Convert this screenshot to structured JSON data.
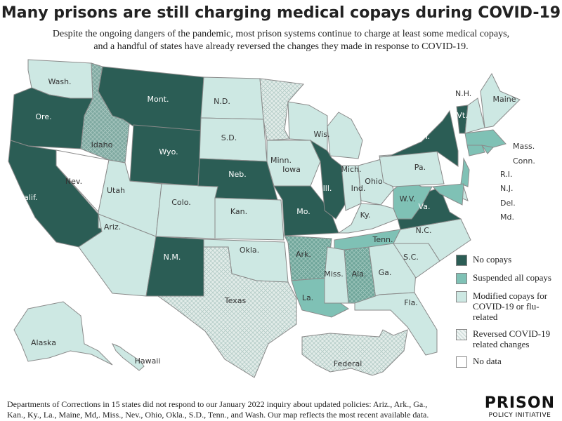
{
  "title": "Many prisons are still charging medical copays during COVID-19",
  "subtitle": [
    "Despite the ongoing dangers of the pandemic, most prison systems continue to charge at least some medical copays,",
    "and a handful of states have already reversed the changes they made in response to COVID-19."
  ],
  "colors": {
    "no_copays": "#2b5d55",
    "suspended": "#7fc1b5",
    "modified": "#cde8e3",
    "reversed": "#dfe9e7",
    "no_data": "#ffffff",
    "border": "#8a8a8a"
  },
  "legend": [
    {
      "key": "no_copays",
      "label": "No copays"
    },
    {
      "key": "suspended",
      "label": "Suspended all copays"
    },
    {
      "key": "modified",
      "label": "Modified copays for COVID-19 or flu-related"
    },
    {
      "key": "reversed",
      "label": "Reversed COVID-19 related changes"
    },
    {
      "key": "no_data",
      "label": "No data"
    }
  ],
  "states": [
    {
      "id": "WA",
      "label": "Wash.",
      "category": "modified"
    },
    {
      "id": "OR",
      "label": "Ore.",
      "category": "no_copays"
    },
    {
      "id": "CA",
      "label": "Calif.",
      "category": "no_copays"
    },
    {
      "id": "NV",
      "label": "Nev.",
      "category": "no_data"
    },
    {
      "id": "ID",
      "label": "Idaho",
      "category": "reversed_dark"
    },
    {
      "id": "MT",
      "label": "Mont.",
      "category": "no_copays"
    },
    {
      "id": "WY",
      "label": "Wyo.",
      "category": "no_copays"
    },
    {
      "id": "UT",
      "label": "Utah",
      "category": "modified"
    },
    {
      "id": "CO",
      "label": "Colo.",
      "category": "modified"
    },
    {
      "id": "AZ",
      "label": "Ariz.",
      "category": "modified"
    },
    {
      "id": "NM",
      "label": "N.M.",
      "category": "no_copays"
    },
    {
      "id": "ND",
      "label": "N.D.",
      "category": "modified"
    },
    {
      "id": "SD",
      "label": "S.D.",
      "category": "modified"
    },
    {
      "id": "NE",
      "label": "Neb.",
      "category": "no_copays"
    },
    {
      "id": "KS",
      "label": "Kan.",
      "category": "modified"
    },
    {
      "id": "OK",
      "label": "Okla.",
      "category": "modified"
    },
    {
      "id": "TX",
      "label": "Texas",
      "category": "reversed"
    },
    {
      "id": "MN",
      "label": "Minn.",
      "category": "reversed"
    },
    {
      "id": "IA",
      "label": "Iowa",
      "category": "modified"
    },
    {
      "id": "MO",
      "label": "Mo.",
      "category": "no_copays"
    },
    {
      "id": "WI",
      "label": "Wis.",
      "category": "modified"
    },
    {
      "id": "IL",
      "label": "Ill.",
      "category": "no_copays"
    },
    {
      "id": "MI",
      "label": "Mich.",
      "category": "modified"
    },
    {
      "id": "IN",
      "label": "Ind.",
      "category": "modified"
    },
    {
      "id": "OH",
      "label": "Ohio",
      "category": "modified"
    },
    {
      "id": "KY",
      "label": "Ky.",
      "category": "modified"
    },
    {
      "id": "TN",
      "label": "Tenn.",
      "category": "suspended"
    },
    {
      "id": "AR",
      "label": "Ark.",
      "category": "reversed_mid"
    },
    {
      "id": "LA",
      "label": "La.",
      "category": "suspended"
    },
    {
      "id": "MS",
      "label": "Miss.",
      "category": "modified"
    },
    {
      "id": "AL",
      "label": "Ala.",
      "category": "reversed_mid"
    },
    {
      "id": "GA",
      "label": "Ga.",
      "category": "modified"
    },
    {
      "id": "FL",
      "label": "Fla.",
      "category": "modified"
    },
    {
      "id": "SC",
      "label": "S.C.",
      "category": "modified"
    },
    {
      "id": "NC",
      "label": "N.C.",
      "category": "modified"
    },
    {
      "id": "VA",
      "label": "Va.",
      "category": "no_copays"
    },
    {
      "id": "WV",
      "label": "W.V.",
      "category": "suspended"
    },
    {
      "id": "PA",
      "label": "Pa.",
      "category": "modified"
    },
    {
      "id": "NY",
      "label": "N.Y.",
      "category": "no_copays"
    },
    {
      "id": "VT",
      "label": "Vt.",
      "category": "no_copays"
    },
    {
      "id": "NH",
      "label": "N.H.",
      "category": "modified"
    },
    {
      "id": "ME",
      "label": "Maine",
      "category": "modified"
    },
    {
      "id": "MA",
      "label": "Mass.",
      "category": "suspended"
    },
    {
      "id": "CT",
      "label": "Conn.",
      "category": "suspended"
    },
    {
      "id": "RI",
      "label": "R.I.",
      "category": "suspended"
    },
    {
      "id": "NJ",
      "label": "N.J.",
      "category": "suspended"
    },
    {
      "id": "DE",
      "label": "Del.",
      "category": "modified"
    },
    {
      "id": "MD",
      "label": "Md.",
      "category": "suspended"
    },
    {
      "id": "AK",
      "label": "Alaska",
      "category": "modified"
    },
    {
      "id": "HI",
      "label": "Hawaii",
      "category": "modified"
    },
    {
      "id": "FED",
      "label": "Federal",
      "category": "reversed"
    }
  ],
  "footnote": [
    "Departments of Corrections in 15 states did not respond to our January 2022 inquiry about updated policies: Ariz., Ark., Ga.,",
    "Kan., Ky., La., Maine, Md,. Miss., Nev., Ohio, Okla., S.D., Tenn., and Wash. Our map reflects the most recent available data."
  ],
  "logo": {
    "line1": "PRISON",
    "line2": "POLICY INITIATIVE"
  }
}
